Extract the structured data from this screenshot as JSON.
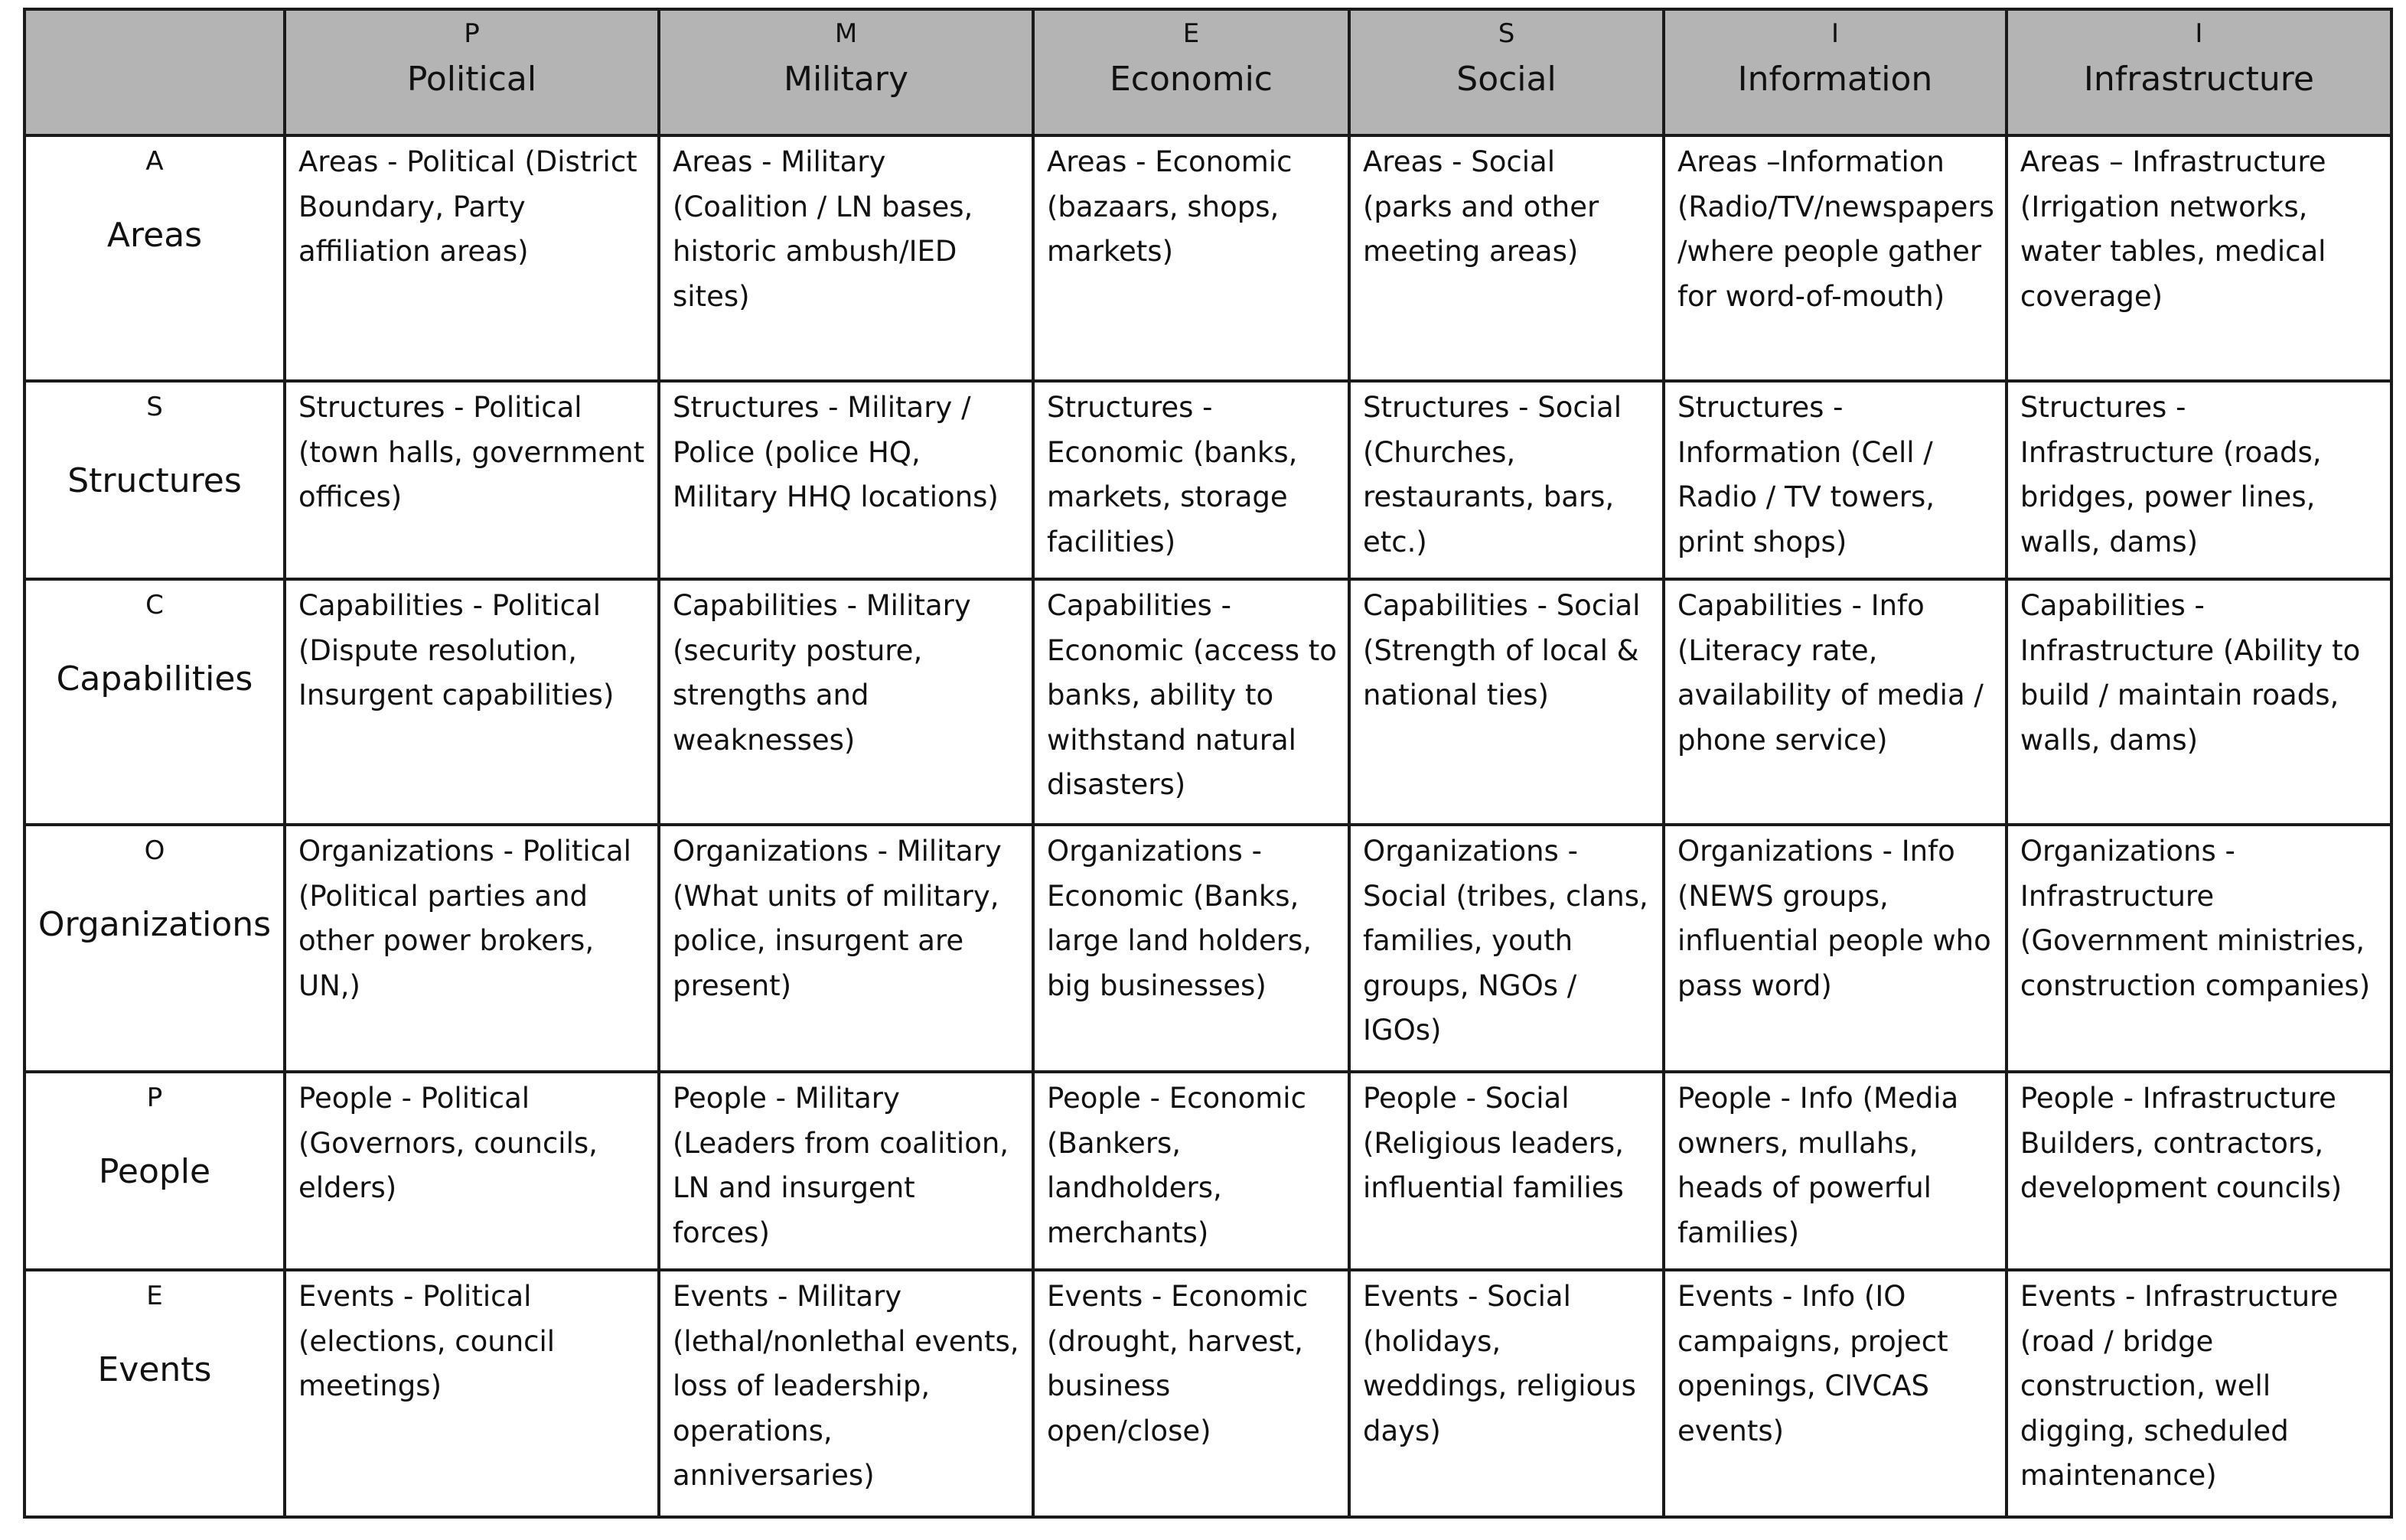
{
  "columns": [
    {
      "letter": "P",
      "name": "Political"
    },
    {
      "letter": "M",
      "name": "Military"
    },
    {
      "letter": "E",
      "name": "Economic"
    },
    {
      "letter": "S",
      "name": "Social"
    },
    {
      "letter": "I",
      "name": "Information"
    },
    {
      "letter": "I",
      "name": "Infrastructure"
    }
  ],
  "rows": [
    {
      "letter": "A",
      "name": "Areas",
      "cells": [
        "Areas - Political (District Boundary, Party affiliation areas)",
        "Areas - Military (Coalition / LN bases, historic ambush/IED sites)",
        "Areas - Economic (bazaars, shops, markets)",
        "Areas - Social (parks and other meeting areas)",
        "Areas –Information (Radio/TV/newspapers /where people gather for word-of-mouth)",
        "Areas – Infrastructure (Irrigation networks, water tables, medical coverage)"
      ]
    },
    {
      "letter": "S",
      "name": "Structures",
      "cells": [
        "Structures - Political (town halls, government offices)",
        "Structures - Military / Police (police HQ, Military HHQ locations)",
        "Structures - Economic (banks, markets, storage facilities)",
        "Structures - Social (Churches, restaurants, bars, etc.)",
        "Structures - Information (Cell / Radio / TV towers, print shops)",
        "Structures - Infrastructure (roads, bridges, power lines, walls, dams)"
      ]
    },
    {
      "letter": "C",
      "name": "Capabilities",
      "cells": [
        "Capabilities - Political (Dispute resolution, Insurgent capabilities)",
        "Capabilities - Military (security posture, strengths and weaknesses)",
        "Capabilities - Economic (access to banks, ability to withstand natural disasters)",
        "Capabilities - Social (Strength of local & national ties)",
        "Capabilities - Info (Literacy rate, availability of media / phone service)",
        "Capabilities - Infrastructure (Ability to build / maintain roads, walls, dams)"
      ]
    },
    {
      "letter": "O",
      "name": "Organizations",
      "cells": [
        "Organizations - Political (Political parties and other power brokers, UN,)",
        "Organizations - Military (What units of military, police, insurgent are present)",
        "Organizations - Economic (Banks, large land holders, big businesses)",
        "Organizations - Social (tribes, clans, families, youth groups, NGOs / IGOs)",
        "Organizations - Info (NEWS groups, influential people who pass word)",
        "Organizations - Infrastructure (Government ministries, construction companies)"
      ]
    },
    {
      "letter": "P",
      "name": "People",
      "cells": [
        "People - Political (Governors, councils, elders)",
        "People - Military (Leaders from coalition, LN and insurgent forces)",
        "People - Economic (Bankers, landholders, merchants)",
        "People - Social (Religious leaders, influential families",
        "People - Info (Media owners, mullahs, heads of powerful families)",
        "People - Infrastructure Builders, contractors, development councils)"
      ]
    },
    {
      "letter": "E",
      "name": "Events",
      "cells": [
        "Events - Political (elections, council meetings)",
        "Events - Military (lethal/nonlethal events, loss of leadership, operations, anniversaries)",
        "Events - Economic (drought, harvest, business open/close)",
        "Events - Social (holidays, weddings, religious days)",
        "Events - Info (IO campaigns, project openings, CIVCAS events)",
        "Events - Infrastructure (road / bridge construction, well digging, scheduled maintenance)"
      ]
    }
  ]
}
